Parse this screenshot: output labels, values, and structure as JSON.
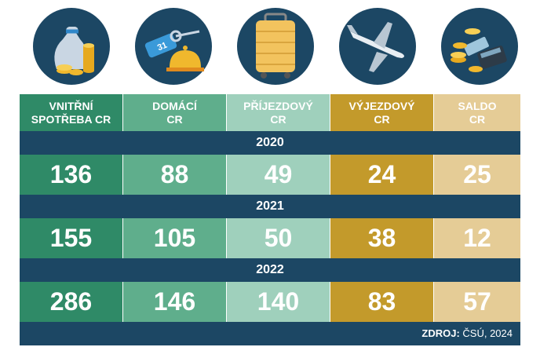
{
  "colors": {
    "navy": "#1c4764",
    "col_vnitrni": "#2f8a67",
    "col_domaci": "#5fae8c",
    "col_prijezdovy": "#9fd0bc",
    "col_vyjezdovy": "#c39a2b",
    "col_saldo": "#e5cc96"
  },
  "icons": [
    "money-bag-coins-icon",
    "hotel-key-bell-icon",
    "suitcase-icon",
    "airplane-icon",
    "coins-calculator-icon"
  ],
  "chart_data": {
    "type": "table",
    "columns": [
      {
        "line1": "VNITŘNÍ",
        "line2": "SPOTŘEBA CR"
      },
      {
        "line1": "DOMÁCÍ",
        "line2": "CR"
      },
      {
        "line1": "PŘÍJEZDOVÝ",
        "line2": "CR"
      },
      {
        "line1": "VÝJEZDOVÝ",
        "line2": "CR"
      },
      {
        "line1": "SALDO",
        "line2": "CR"
      }
    ],
    "rows": [
      {
        "year": "2020",
        "values": [
          "136",
          "88",
          "49",
          "24",
          "25"
        ]
      },
      {
        "year": "2021",
        "values": [
          "155",
          "105",
          "50",
          "38",
          "12"
        ]
      },
      {
        "year": "2022",
        "values": [
          "286",
          "146",
          "140",
          "83",
          "57"
        ]
      }
    ]
  },
  "source": {
    "label": "ZDROJ:",
    "text": "ČSÚ, 2024"
  }
}
